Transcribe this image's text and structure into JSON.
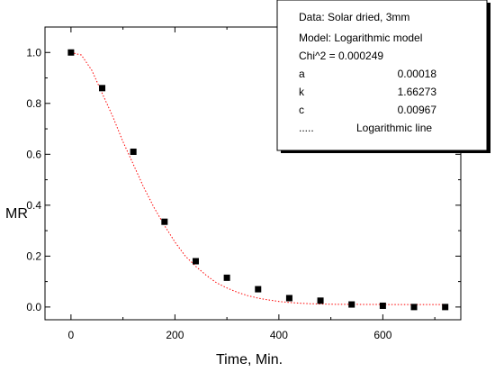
{
  "chart_data": {
    "type": "scatter",
    "xlabel": "Time, Min.",
    "ylabel": "MR",
    "xlim": [
      -50,
      750
    ],
    "ylim": [
      -0.05,
      1.1
    ],
    "xticks": [
      0,
      200,
      400,
      600
    ],
    "yticks": [
      0.0,
      0.2,
      0.4,
      0.6,
      0.8,
      1.0
    ],
    "xtick_labels": [
      "0",
      "200",
      "400",
      "600"
    ],
    "ytick_labels": [
      "0.0",
      "0.2",
      "0.4",
      "0.6",
      "0.8",
      "1.0"
    ],
    "grid": false,
    "series": [
      {
        "kind": "points",
        "marker": "square",
        "color": "#000000",
        "x": [
          0,
          60,
          120,
          180,
          240,
          300,
          360,
          420,
          480,
          540,
          600,
          660,
          720
        ],
        "y": [
          1.0,
          0.86,
          0.61,
          0.335,
          0.18,
          0.115,
          0.07,
          0.035,
          0.025,
          0.01,
          0.005,
          0.0,
          0.0
        ]
      },
      {
        "kind": "fit-line",
        "style": "dotted",
        "color": "#ff0000",
        "x": [
          0,
          20,
          40,
          60,
          80,
          100,
          120,
          140,
          160,
          180,
          200,
          220,
          240,
          260,
          280,
          300,
          320,
          340,
          360,
          380,
          400,
          420,
          440,
          460,
          480,
          500,
          540,
          580,
          620,
          660,
          720
        ],
        "y": [
          1.0,
          0.99,
          0.93,
          0.84,
          0.75,
          0.65,
          0.56,
          0.47,
          0.39,
          0.32,
          0.255,
          0.2,
          0.16,
          0.125,
          0.095,
          0.075,
          0.058,
          0.045,
          0.035,
          0.028,
          0.022,
          0.018,
          0.015,
          0.013,
          0.012,
          0.011,
          0.0105,
          0.01,
          0.0098,
          0.0097,
          0.0097
        ]
      }
    ],
    "legend": {
      "placement": "top-right",
      "data_line": "Data: Solar dried, 3mm",
      "model_line": "Model: Logarithmic model",
      "chi_line": "Chi^2 = 0.000249",
      "params": [
        {
          "name": "a",
          "value": "0.00018"
        },
        {
          "name": "k",
          "value": "1.66273"
        },
        {
          "name": "c",
          "value": "0.00967"
        }
      ],
      "line_marker": ".....",
      "line_label": "Logarithmic line"
    }
  }
}
